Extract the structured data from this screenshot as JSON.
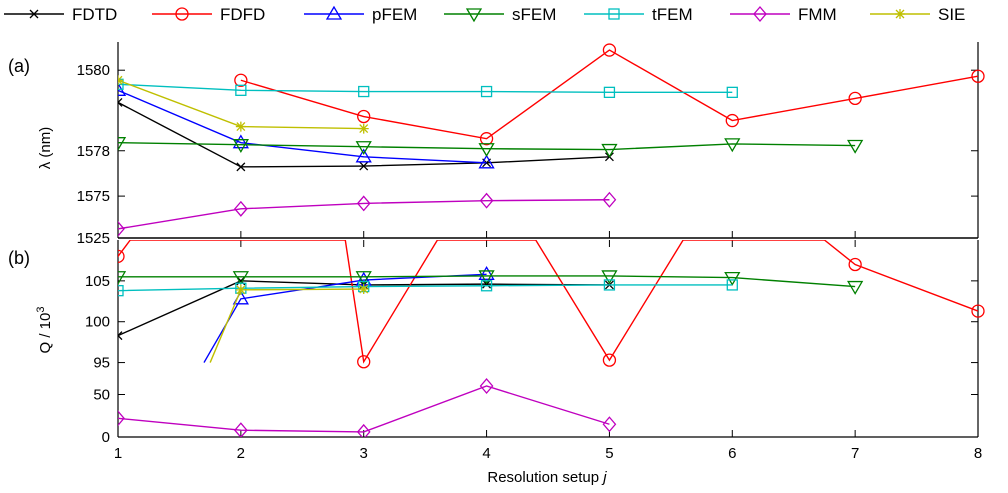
{
  "legend": [
    {
      "name": "FDTD",
      "color": "#000000",
      "marker": "x"
    },
    {
      "name": "FDFD",
      "color": "#ff0000",
      "marker": "circle"
    },
    {
      "name": "pFEM",
      "color": "#0000ff",
      "marker": "triangle-up"
    },
    {
      "name": "sFEM",
      "color": "#008000",
      "marker": "triangle-down"
    },
    {
      "name": "tFEM",
      "color": "#00bfbf",
      "marker": "square"
    },
    {
      "name": "FMM",
      "color": "#bf00bf",
      "marker": "diamond"
    },
    {
      "name": "SIE",
      "color": "#bfbf00",
      "marker": "star"
    }
  ],
  "chart_data": {
    "type": "line",
    "xlabel": "Resolution setup j",
    "xlim": [
      1,
      8
    ],
    "x_ticks": [
      "1",
      "2",
      "3",
      "4",
      "5",
      "6",
      "7",
      "8"
    ],
    "panels": [
      {
        "label": "(a)",
        "ylabel": "λ (nm)",
        "segments": [
          {
            "ylim": [
              1577.1,
              1580.7
            ],
            "ticks": [
              "1578",
              "1580"
            ]
          },
          {
            "ylim": [
              1572.7,
              1575.5
            ],
            "ticks": [
              "1575"
            ]
          }
        ],
        "bottom_tick": "1525",
        "series": [
          {
            "name": "FDTD",
            "points": [
              [
                1,
                1579.2
              ],
              [
                2,
                1577.6
              ],
              [
                3,
                1577.62
              ],
              [
                4,
                1577.7
              ],
              [
                5,
                1577.85
              ]
            ]
          },
          {
            "name": "FDFD",
            "points": [
              [
                0.85,
                1581.5
              ],
              [
                2,
                1579.75
              ],
              [
                3,
                1578.85
              ],
              [
                4,
                1578.3
              ],
              [
                5,
                1580.5
              ],
              [
                6,
                1578.75
              ],
              [
                7,
                1579.3
              ],
              [
                8,
                1579.85
              ]
            ]
          },
          {
            "name": "pFEM",
            "points": [
              [
                1,
                1579.5
              ],
              [
                2,
                1578.2
              ],
              [
                3,
                1577.85
              ],
              [
                4,
                1577.7
              ]
            ]
          },
          {
            "name": "sFEM",
            "points": [
              [
                1,
                1578.2
              ],
              [
                2,
                1578.15
              ],
              [
                3,
                1578.1
              ],
              [
                4,
                1578.05
              ],
              [
                5,
                1578.03
              ],
              [
                6,
                1578.17
              ],
              [
                7,
                1578.13
              ]
            ]
          },
          {
            "name": "tFEM",
            "points": [
              [
                1,
                1579.65
              ],
              [
                2,
                1579.5
              ],
              [
                3,
                1579.47
              ],
              [
                4,
                1579.47
              ],
              [
                5,
                1579.45
              ],
              [
                6,
                1579.45
              ]
            ]
          },
          {
            "name": "FMM",
            "points": [
              [
                1,
                1573.2
              ],
              [
                2,
                1574.3
              ],
              [
                3,
                1574.6
              ],
              [
                4,
                1574.75
              ],
              [
                5,
                1574.8
              ]
            ]
          },
          {
            "name": "SIE",
            "points": [
              [
                1,
                1579.75
              ],
              [
                2,
                1578.6
              ],
              [
                3,
                1578.55
              ]
            ]
          }
        ]
      },
      {
        "label": "(b)",
        "ylabel": "Q / 10^3",
        "segments": [
          {
            "ylim": [
              92.5,
              110
            ],
            "ticks": [
              "95",
              "100",
              "105"
            ]
          },
          {
            "ylim": [
              0,
              60
            ],
            "ticks": [
              "0",
              "50"
            ]
          }
        ],
        "series": [
          {
            "name": "FDTD",
            "points": [
              [
                1,
                98.3
              ],
              [
                2,
                105.0
              ],
              [
                3,
                104.5
              ],
              [
                4,
                104.6
              ],
              [
                5,
                104.5
              ]
            ]
          },
          {
            "name": "FDFD",
            "points": [
              [
                0.98,
                110
              ],
              [
                1,
                108.0
              ],
              [
                1.1,
                110
              ],
              [
                2.85,
                110
              ],
              [
                3,
                95.1
              ],
              [
                3.6,
                110
              ],
              [
                4.4,
                110
              ],
              [
                5,
                95.3
              ],
              [
                5.6,
                110
              ],
              [
                6.75,
                110
              ],
              [
                7,
                107.0
              ],
              [
                8,
                101.3
              ]
            ]
          },
          {
            "name": "pFEM",
            "points": [
              [
                1.7,
                95
              ],
              [
                2,
                102.8
              ],
              [
                3,
                105.1
              ],
              [
                4,
                105.8
              ]
            ]
          },
          {
            "name": "sFEM",
            "points": [
              [
                1,
                105.5
              ],
              [
                2,
                105.5
              ],
              [
                3,
                105.5
              ],
              [
                4,
                105.6
              ],
              [
                5,
                105.6
              ],
              [
                6,
                105.4
              ],
              [
                7,
                104.3
              ]
            ]
          },
          {
            "name": "tFEM",
            "points": [
              [
                1,
                103.8
              ],
              [
                2,
                104.1
              ],
              [
                3,
                104.3
              ],
              [
                4,
                104.4
              ],
              [
                5,
                104.5
              ],
              [
                6,
                104.5
              ]
            ]
          },
          {
            "name": "FMM",
            "points": [
              [
                1,
                22
              ],
              [
                2,
                8
              ],
              [
                3,
                6
              ],
              [
                4,
                60
              ],
              [
                5,
                15
              ]
            ]
          },
          {
            "name": "SIE",
            "points": [
              [
                1.75,
                95
              ],
              [
                2,
                103.9
              ],
              [
                3,
                104.0
              ]
            ]
          }
        ]
      }
    ]
  }
}
